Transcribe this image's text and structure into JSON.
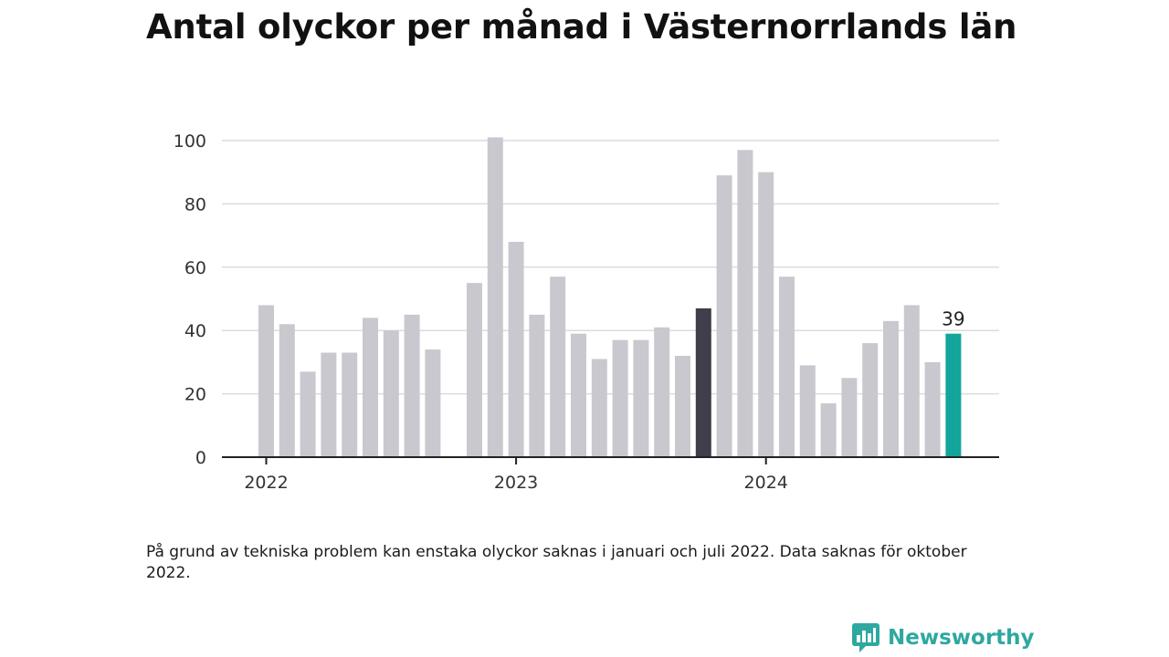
{
  "title": "Antal olyckor per månad i Västernorrlands län",
  "note": "På grund av tekniska problem kan enstaka olyckor saknas i januari och juli 2022. Data saknas för oktober 2022.",
  "brand": {
    "name": "Newsworthy",
    "logo_icon": "bar-chart-speech-bubble-icon"
  },
  "colors": {
    "bar": "#c9c8cf",
    "highlight_prev_year": "#3f3e4b",
    "highlight_latest": "#12a59b",
    "grid": "#dcdcdc",
    "axis": "#222222"
  },
  "chart_data": {
    "type": "bar",
    "title": "Antal olyckor per månad i Västernorrlands län",
    "xlabel": "",
    "ylabel": "",
    "ylim": [
      0,
      100
    ],
    "yticks": [
      0,
      20,
      40,
      60,
      80,
      100
    ],
    "grid": true,
    "x_tick_labels": [
      {
        "label": "2022",
        "month": "2022-01"
      },
      {
        "label": "2023",
        "month": "2023-01"
      },
      {
        "label": "2024",
        "month": "2024-01"
      }
    ],
    "points": [
      {
        "month": "2022-01",
        "value": 48
      },
      {
        "month": "2022-02",
        "value": 42
      },
      {
        "month": "2022-03",
        "value": 27
      },
      {
        "month": "2022-04",
        "value": 33
      },
      {
        "month": "2022-05",
        "value": 33
      },
      {
        "month": "2022-06",
        "value": 44
      },
      {
        "month": "2022-07",
        "value": 40
      },
      {
        "month": "2022-08",
        "value": 45
      },
      {
        "month": "2022-09",
        "value": 34
      },
      {
        "month": "2022-10",
        "value": null
      },
      {
        "month": "2022-11",
        "value": 55
      },
      {
        "month": "2022-12",
        "value": 101
      },
      {
        "month": "2023-01",
        "value": 68
      },
      {
        "month": "2023-02",
        "value": 45
      },
      {
        "month": "2023-03",
        "value": 57
      },
      {
        "month": "2023-04",
        "value": 39
      },
      {
        "month": "2023-05",
        "value": 31
      },
      {
        "month": "2023-06",
        "value": 37
      },
      {
        "month": "2023-07",
        "value": 37
      },
      {
        "month": "2023-08",
        "value": 41
      },
      {
        "month": "2023-09",
        "value": 32
      },
      {
        "month": "2023-10",
        "value": 47,
        "highlight": "prev_year"
      },
      {
        "month": "2023-11",
        "value": 89
      },
      {
        "month": "2023-12",
        "value": 97
      },
      {
        "month": "2024-01",
        "value": 90
      },
      {
        "month": "2024-02",
        "value": 57
      },
      {
        "month": "2024-03",
        "value": 29
      },
      {
        "month": "2024-04",
        "value": 17
      },
      {
        "month": "2024-05",
        "value": 25
      },
      {
        "month": "2024-06",
        "value": 36
      },
      {
        "month": "2024-07",
        "value": 43
      },
      {
        "month": "2024-08",
        "value": 48
      },
      {
        "month": "2024-09",
        "value": 30
      },
      {
        "month": "2024-10",
        "value": 39,
        "highlight": "latest",
        "label": "39"
      }
    ]
  }
}
